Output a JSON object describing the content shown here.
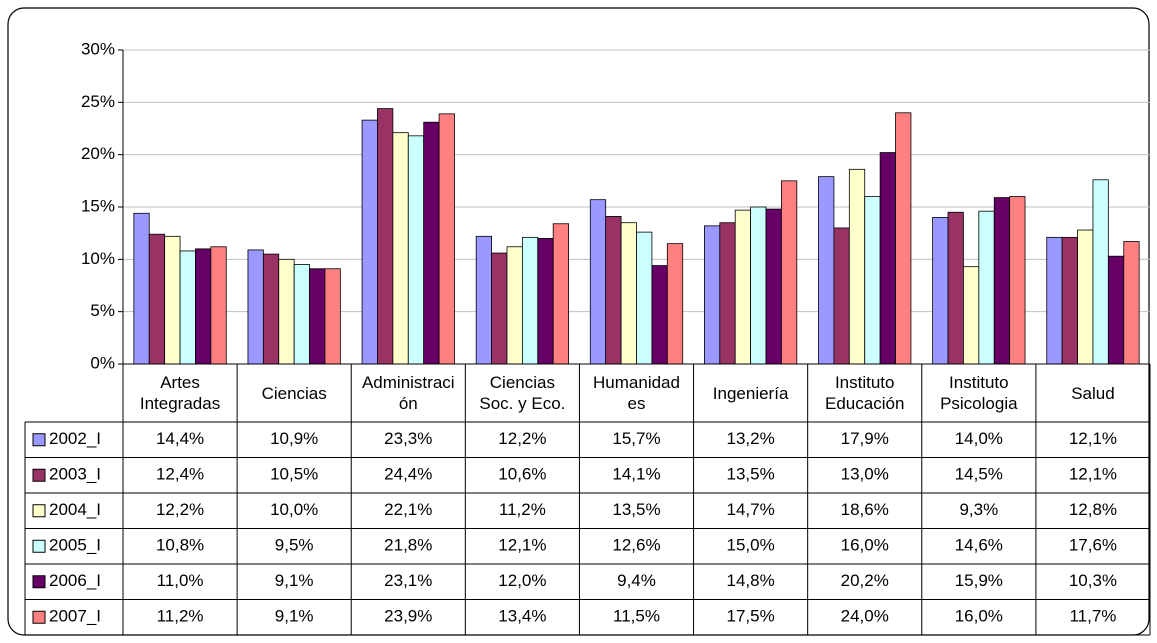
{
  "chart_data": {
    "type": "bar",
    "categories": [
      "Artes Integradas",
      "Ciencias",
      "Administración",
      "Ciencias Soc. y Eco.",
      "Humanidades",
      "Ingeniería",
      "Instituto Educación",
      "Instituto Psicologia",
      "Salud"
    ],
    "series": [
      {
        "name": "2002_I",
        "color": "#9999ff",
        "values": [
          14.4,
          10.9,
          23.3,
          12.2,
          15.7,
          13.2,
          17.9,
          14.0,
          12.1
        ],
        "value_labels": [
          "14,4%",
          "10,9%",
          "23,3%",
          "12,2%",
          "15,7%",
          "13,2%",
          "17,9%",
          "14,0%",
          "12,1%"
        ]
      },
      {
        "name": "2003_I",
        "color": "#993366",
        "values": [
          12.4,
          10.5,
          24.4,
          10.6,
          14.1,
          13.5,
          13.0,
          14.5,
          12.1
        ],
        "value_labels": [
          "12,4%",
          "10,5%",
          "24,4%",
          "10,6%",
          "14,1%",
          "13,5%",
          "13,0%",
          "14,5%",
          "12,1%"
        ]
      },
      {
        "name": "2004_I",
        "color": "#ffffcc",
        "values": [
          12.2,
          10.0,
          22.1,
          11.2,
          13.5,
          14.7,
          18.6,
          9.3,
          12.8
        ],
        "value_labels": [
          "12,2%",
          "10,0%",
          "22,1%",
          "11,2%",
          "13,5%",
          "14,7%",
          "18,6%",
          "9,3%",
          "12,8%"
        ]
      },
      {
        "name": "2005_I",
        "color": "#ccffff",
        "values": [
          10.8,
          9.5,
          21.8,
          12.1,
          12.6,
          15.0,
          16.0,
          14.6,
          17.6
        ],
        "value_labels": [
          "10,8%",
          "9,5%",
          "21,8%",
          "12,1%",
          "12,6%",
          "15,0%",
          "16,0%",
          "14,6%",
          "17,6%"
        ]
      },
      {
        "name": "2006_I",
        "color": "#660066",
        "values": [
          11.0,
          9.1,
          23.1,
          12.0,
          9.4,
          14.8,
          20.2,
          15.9,
          10.3
        ],
        "value_labels": [
          "11,0%",
          "9,1%",
          "23,1%",
          "12,0%",
          "9,4%",
          "14,8%",
          "20,2%",
          "15,9%",
          "10,3%"
        ]
      },
      {
        "name": "2007_I",
        "color": "#ff8080",
        "values": [
          11.2,
          9.1,
          23.9,
          13.4,
          11.5,
          17.5,
          24.0,
          16.0,
          11.7
        ],
        "value_labels": [
          "11,2%",
          "9,1%",
          "23,9%",
          "13,4%",
          "11,5%",
          "17,5%",
          "24,0%",
          "16,0%",
          "11,7%"
        ]
      }
    ],
    "ylim": [
      0,
      30
    ],
    "yticks": [
      {
        "value": 0,
        "label": "0%"
      },
      {
        "value": 5,
        "label": "5%"
      },
      {
        "value": 10,
        "label": "10%"
      },
      {
        "value": 15,
        "label": "15%"
      },
      {
        "value": 20,
        "label": "20%"
      },
      {
        "value": 25,
        "label": "25%"
      },
      {
        "value": 30,
        "label": "30%"
      }
    ],
    "grid": true
  }
}
